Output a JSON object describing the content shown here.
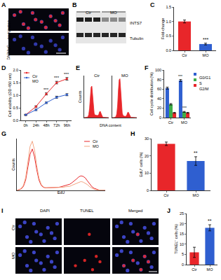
{
  "chart_data": [
    {
      "panel": "A",
      "type": "image",
      "labels": [
        "DAPI/INTS7",
        "DAPI/IgG"
      ]
    },
    {
      "panel": "B",
      "type": "blot",
      "lanes": [
        "Ctr",
        "MO"
      ],
      "bands": [
        "INTS7",
        "Tubulin"
      ]
    },
    {
      "panel": "C",
      "type": "bar",
      "categories": [
        "Ctr",
        "MO"
      ],
      "values": [
        1.0,
        0.22
      ],
      "errors": [
        0.05,
        0.03
      ],
      "colors": [
        "#e8262a",
        "#2f5fd0"
      ],
      "y_label": "Fold-change",
      "ylim": [
        0,
        1.5
      ],
      "yticks": [
        {
          "value": 0,
          "label": "0.0"
        },
        {
          "value": 0.5,
          "label": "0.5"
        },
        {
          "value": 1,
          "label": "1.0"
        },
        {
          "value": 1.5,
          "label": "1.5"
        }
      ],
      "annotations": [
        {
          "category": "MO",
          "text": "***"
        }
      ]
    },
    {
      "panel": "D",
      "type": "line",
      "categories": [
        "0h",
        "24h",
        "48h",
        "72h",
        "96h"
      ],
      "series": [
        {
          "name": "Ctr",
          "color": "#e8262a",
          "values": [
            0.22,
            0.55,
            1.05,
            1.5,
            1.65
          ],
          "errors": [
            0.02,
            0.03,
            0.04,
            0.05,
            0.05
          ]
        },
        {
          "name": "MO",
          "color": "#2f5fd0",
          "values": [
            0.22,
            0.42,
            0.7,
            0.92,
            1.02
          ],
          "errors": [
            0.02,
            0.03,
            0.03,
            0.04,
            0.04
          ]
        }
      ],
      "y_label": "Cell viability (OD 450 nm)",
      "ylim": [
        0,
        2
      ],
      "yticks": [
        {
          "value": 0,
          "label": "0.0"
        },
        {
          "value": 0.5,
          "label": "0.5"
        },
        {
          "value": 1,
          "label": "1.0"
        },
        {
          "value": 1.5,
          "label": "1.5"
        },
        {
          "value": 2,
          "label": "2.0"
        }
      ],
      "annotations": [
        {
          "category": "48h",
          "text": "***"
        },
        {
          "category": "72h",
          "text": "***"
        },
        {
          "category": "96h",
          "text": "***"
        }
      ]
    },
    {
      "panel": "E",
      "type": "area",
      "x_label": "DNA content",
      "y_label": "Counts",
      "x": [
        0,
        1,
        2,
        3,
        4,
        5,
        6,
        7,
        8,
        9,
        10,
        11,
        12,
        13,
        14,
        15,
        16,
        17,
        18,
        19,
        20,
        21,
        22,
        23,
        24,
        25,
        26,
        27,
        28,
        29,
        30,
        31,
        32
      ],
      "series": [
        {
          "name": "Ctr",
          "color": "#e8262a",
          "values": [
            0,
            0,
            0,
            2,
            5,
            10,
            30,
            90,
            200,
            290,
            300,
            220,
            110,
            40,
            25,
            22,
            20,
            20,
            22,
            30,
            55,
            60,
            40,
            15,
            6,
            3,
            2,
            1,
            0,
            0,
            0,
            0,
            0
          ]
        },
        {
          "name": "MO",
          "color": "#e8262a",
          "values": [
            0,
            0,
            0,
            2,
            6,
            12,
            40,
            120,
            260,
            360,
            370,
            270,
            130,
            45,
            20,
            15,
            13,
            12,
            15,
            25,
            48,
            52,
            35,
            12,
            5,
            3,
            2,
            1,
            0,
            0,
            0,
            0,
            0
          ]
        }
      ],
      "xlim": [
        0,
        32
      ],
      "ylim": [
        0,
        400
      ],
      "tick_labels": false
    },
    {
      "panel": "F",
      "type": "bar",
      "categories": [
        "Ctr",
        "MO"
      ],
      "series": [
        {
          "name": "G0/G1",
          "color": "#2f5fd0",
          "values": [
            62,
            78
          ],
          "errors": [
            2,
            2
          ]
        },
        {
          "name": "S",
          "color": "#3fae49",
          "values": [
            28,
            12
          ],
          "errors": [
            1.5,
            1
          ]
        },
        {
          "name": "G2/M",
          "color": "#e8262a",
          "values": [
            10,
            10
          ],
          "errors": [
            1,
            1
          ]
        }
      ],
      "y_label": "Cell cycle distribution (%)",
      "ylim": [
        0,
        100
      ],
      "yticks": [
        0,
        20,
        40,
        60,
        80,
        100
      ],
      "annotations": [
        {
          "category": "MO",
          "series": "G0/G1",
          "text": "***"
        },
        {
          "category": "MO",
          "series": "S",
          "text": "***"
        }
      ]
    },
    {
      "panel": "G",
      "type": "line",
      "x_label": "EdU",
      "y_label": "Counts",
      "x": [
        0,
        1,
        2,
        3,
        4,
        5,
        6,
        7,
        8,
        9,
        10,
        11,
        12,
        13,
        14,
        15,
        16,
        17,
        18,
        19,
        20,
        21,
        22,
        23,
        24,
        25,
        26,
        27,
        28,
        29,
        30,
        31,
        32,
        33,
        34,
        35,
        36,
        37,
        38,
        39,
        40
      ],
      "series": [
        {
          "name": "Ctr",
          "color": "#e8262a",
          "values": [
            0,
            1,
            3,
            8,
            20,
            45,
            70,
            80,
            65,
            40,
            20,
            10,
            6,
            5,
            5,
            5,
            5,
            5,
            6,
            6,
            7,
            8,
            9,
            10,
            12,
            15,
            18,
            22,
            26,
            28,
            27,
            24,
            18,
            12,
            7,
            4,
            2,
            1,
            0,
            0,
            0
          ]
        },
        {
          "name": "MO",
          "color": "#f4a582",
          "values": [
            0,
            1,
            4,
            10,
            25,
            55,
            85,
            95,
            78,
            48,
            24,
            12,
            7,
            5,
            5,
            5,
            5,
            5,
            5,
            5,
            6,
            6,
            7,
            7,
            8,
            10,
            12,
            14,
            16,
            17,
            16,
            14,
            11,
            7,
            4,
            2,
            1,
            1,
            0,
            0,
            0
          ]
        }
      ],
      "xlim": [
        0,
        40
      ],
      "ylim": [
        0,
        100
      ],
      "tick_labels": false
    },
    {
      "panel": "H",
      "type": "bar",
      "categories": [
        "Ctr",
        "MO"
      ],
      "values": [
        27,
        17
      ],
      "errors": [
        1,
        2.5
      ],
      "colors": [
        "#e8262a",
        "#2f5fd0"
      ],
      "y_label": "EdU⁺ cells (%)",
      "ylim": [
        0,
        30
      ],
      "yticks": [
        0,
        10,
        20,
        30
      ],
      "annotations": [
        {
          "category": "MO",
          "text": "**"
        }
      ]
    },
    {
      "panel": "I",
      "type": "image",
      "columns": [
        "DAPI",
        "TUNEL",
        "Merged"
      ],
      "rows": [
        "Ctr",
        "MO"
      ]
    },
    {
      "panel": "J",
      "type": "bar",
      "categories": [
        "Ctr",
        "MO"
      ],
      "values": [
        6,
        18
      ],
      "errors": [
        2.5,
        1.5
      ],
      "colors": [
        "#e8262a",
        "#2f5fd0"
      ],
      "y_label": "TUNEL⁺ cells (%)",
      "ylim": [
        0,
        25
      ],
      "yticks": [
        0,
        5,
        10,
        15,
        20,
        25
      ],
      "annotations": [
        {
          "category": "MO",
          "text": "**"
        }
      ]
    }
  ]
}
